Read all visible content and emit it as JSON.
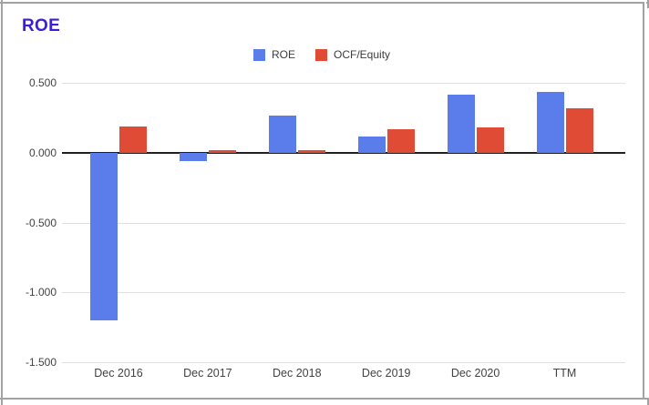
{
  "title": "ROE",
  "colors": {
    "title": "#3B1ED8",
    "roe_bar": "#5B7CEB",
    "ocf_bar": "#E04B35",
    "gridline": "#E0E0E0",
    "zero_axis": "#212121",
    "axis_text": "#424242",
    "frame_border": "#A2A2A2"
  },
  "legend": [
    {
      "label": "ROE",
      "color": "#5B7CEB"
    },
    {
      "label": "OCF/Equity",
      "color": "#E04B35"
    }
  ],
  "chart_data": {
    "type": "bar",
    "title": "ROE",
    "categories": [
      "Dec 2016",
      "Dec 2017",
      "Dec 2018",
      "Dec 2019",
      "Dec 2020",
      "TTM"
    ],
    "series": [
      {
        "name": "ROE",
        "color": "#5B7CEB",
        "values": [
          -1.2,
          -0.06,
          0.27,
          0.12,
          0.42,
          0.44
        ]
      },
      {
        "name": "OCF/Equity",
        "color": "#E04B35",
        "values": [
          0.19,
          0.02,
          0.02,
          0.17,
          0.18,
          0.32
        ]
      }
    ],
    "xlabel": "",
    "ylabel": "",
    "ylim": [
      -1.5,
      0.5
    ],
    "y_ticks": [
      0.5,
      0,
      -0.5,
      -1.0,
      -1.5
    ],
    "y_tick_labels": [
      "0.500",
      "0.000",
      "-0.500",
      "-1.000",
      "-1.500"
    ],
    "grid": true,
    "legend_position": "top"
  }
}
